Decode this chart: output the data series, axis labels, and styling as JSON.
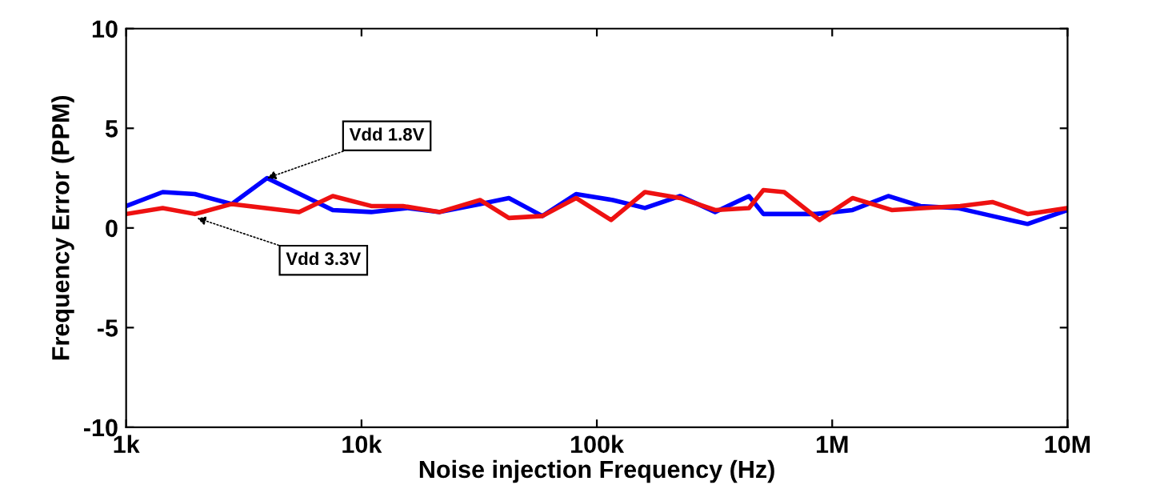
{
  "chart_data": {
    "type": "line",
    "xlabel": "Noise injection Frequency (Hz)",
    "ylabel": "Frequency Error (PPM)",
    "log": "x",
    "xlim": [
      1000,
      10000000
    ],
    "xticks": [
      {
        "value": 1000,
        "label": "1k"
      },
      {
        "value": 10000,
        "label": "10k"
      },
      {
        "value": 100000,
        "label": "100k"
      },
      {
        "value": 1000000,
        "label": "1M"
      },
      {
        "value": 10000000,
        "label": "10M"
      }
    ],
    "ylim": [
      -10,
      10
    ],
    "yticks": [
      -10,
      -5,
      0,
      5,
      10
    ],
    "grid": false,
    "marker": "none",
    "line_style": "solid",
    "series": [
      {
        "color": "#0000ff",
        "x": [
          1000,
          1430,
          1960,
          2810,
          3970,
          7550,
          11000,
          15700,
          21500,
          31900,
          42300,
          58700,
          81600,
          117000,
          160000,
          226000,
          318000,
          443000,
          510000,
          855000,
          1220000,
          1730000,
          2370000,
          3400000,
          4790000,
          6760000,
          10000000
        ],
        "values": [
          1.1,
          1.8,
          1.7,
          1.2,
          2.5,
          0.9,
          0.8,
          1.0,
          0.8,
          1.2,
          1.5,
          0.6,
          1.7,
          1.4,
          1.0,
          1.6,
          0.8,
          1.6,
          0.7,
          0.7,
          0.9,
          1.6,
          1.1,
          1.0,
          0.6,
          0.2,
          0.9
        ]
      },
      {
        "color": "#ee1111",
        "x": [
          1000,
          1430,
          1960,
          2810,
          5430,
          7550,
          11000,
          15000,
          21500,
          31900,
          42300,
          58700,
          81600,
          115000,
          160000,
          226000,
          318000,
          443000,
          510000,
          625000,
          883000,
          1220000,
          1790000,
          2440000,
          3500000,
          4790000,
          6760000,
          10000000
        ],
        "values": [
          0.7,
          1.0,
          0.7,
          1.2,
          0.8,
          1.6,
          1.1,
          1.1,
          0.8,
          1.4,
          0.5,
          0.6,
          1.5,
          0.4,
          1.8,
          1.5,
          0.9,
          1.0,
          1.9,
          1.8,
          0.4,
          1.5,
          0.9,
          1.0,
          1.1,
          1.3,
          0.7,
          1.0
        ]
      }
    ],
    "annotations": [
      {
        "text": "Vdd 1.8V",
        "x": 3970,
        "y": 2.5
      },
      {
        "text": "Vdd 3.3V",
        "x": 2000,
        "y": 0.5
      }
    ]
  }
}
